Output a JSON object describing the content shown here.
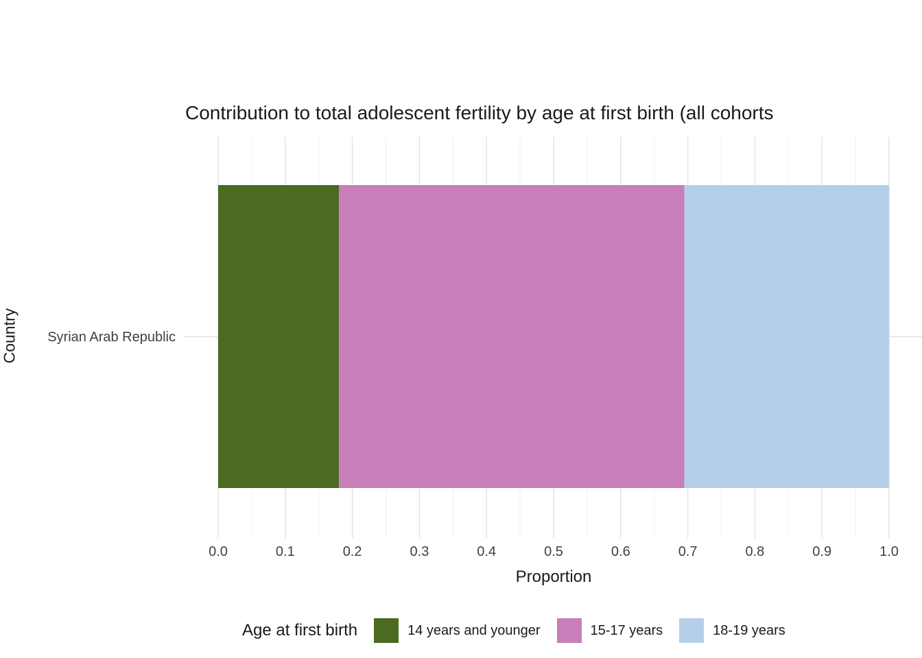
{
  "chart_data": {
    "type": "bar",
    "orientation": "horizontal",
    "stacked": true,
    "title": "Contribution to total adolescent fertility by age at first birth (all cohorts",
    "xlabel": "Proportion",
    "ylabel": "Country",
    "categories": [
      "Syrian Arab Republic"
    ],
    "series": [
      {
        "name": "14 years and younger",
        "color": "#4c6a20",
        "values": [
          0.18
        ]
      },
      {
        "name": "15-17 years",
        "color": "#c87eba",
        "values": [
          0.515
        ]
      },
      {
        "name": "18-19 years",
        "color": "#b6cfe9",
        "values": [
          0.305
        ]
      }
    ],
    "xlim": [
      0,
      1
    ],
    "x_ticks": [
      "0.0",
      "0.1",
      "0.2",
      "0.3",
      "0.4",
      "0.5",
      "0.6",
      "0.7",
      "0.8",
      "0.9",
      "1.0"
    ],
    "grid": "vertical major and minor gridlines, light gray, plus one horizontal category gridline",
    "legend": {
      "title": "Age at first birth",
      "position": "bottom"
    }
  }
}
